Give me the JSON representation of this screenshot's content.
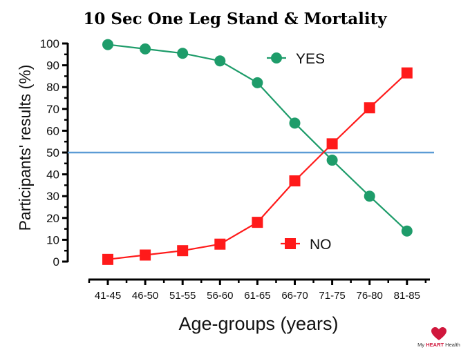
{
  "chart_data": {
    "type": "line",
    "title": "10 Sec One Leg Stand & Mortality",
    "xlabel": "Age-groups (years)",
    "ylabel": "Participants' results (%)",
    "categories": [
      "41-45",
      "46-50",
      "51-55",
      "56-60",
      "61-65",
      "66-70",
      "71-75",
      "76-80",
      "81-85"
    ],
    "ylim": [
      0,
      100
    ],
    "yticks": [
      0,
      10,
      20,
      30,
      40,
      50,
      60,
      70,
      80,
      90,
      100
    ],
    "reference_line": {
      "y": 50,
      "color": "#5b9bd5"
    },
    "grid": false,
    "series": [
      {
        "name": "YES",
        "marker": "circle",
        "color": "#1e9c6a",
        "values": [
          99.5,
          97.5,
          95.5,
          92,
          82,
          63.5,
          46.5,
          30,
          14
        ]
      },
      {
        "name": "NO",
        "marker": "square",
        "color": "#ff1a1a",
        "values": [
          1,
          3,
          5,
          8,
          18,
          37,
          54,
          70.5,
          86.5
        ]
      }
    ],
    "legend_placement": "inside, next to each series"
  },
  "branding": {
    "prefix": "My ",
    "highlight": "HEART",
    "suffix": " Health",
    "logo_icon": "heart-logo-icon",
    "logo_color": "#d0173c"
  }
}
